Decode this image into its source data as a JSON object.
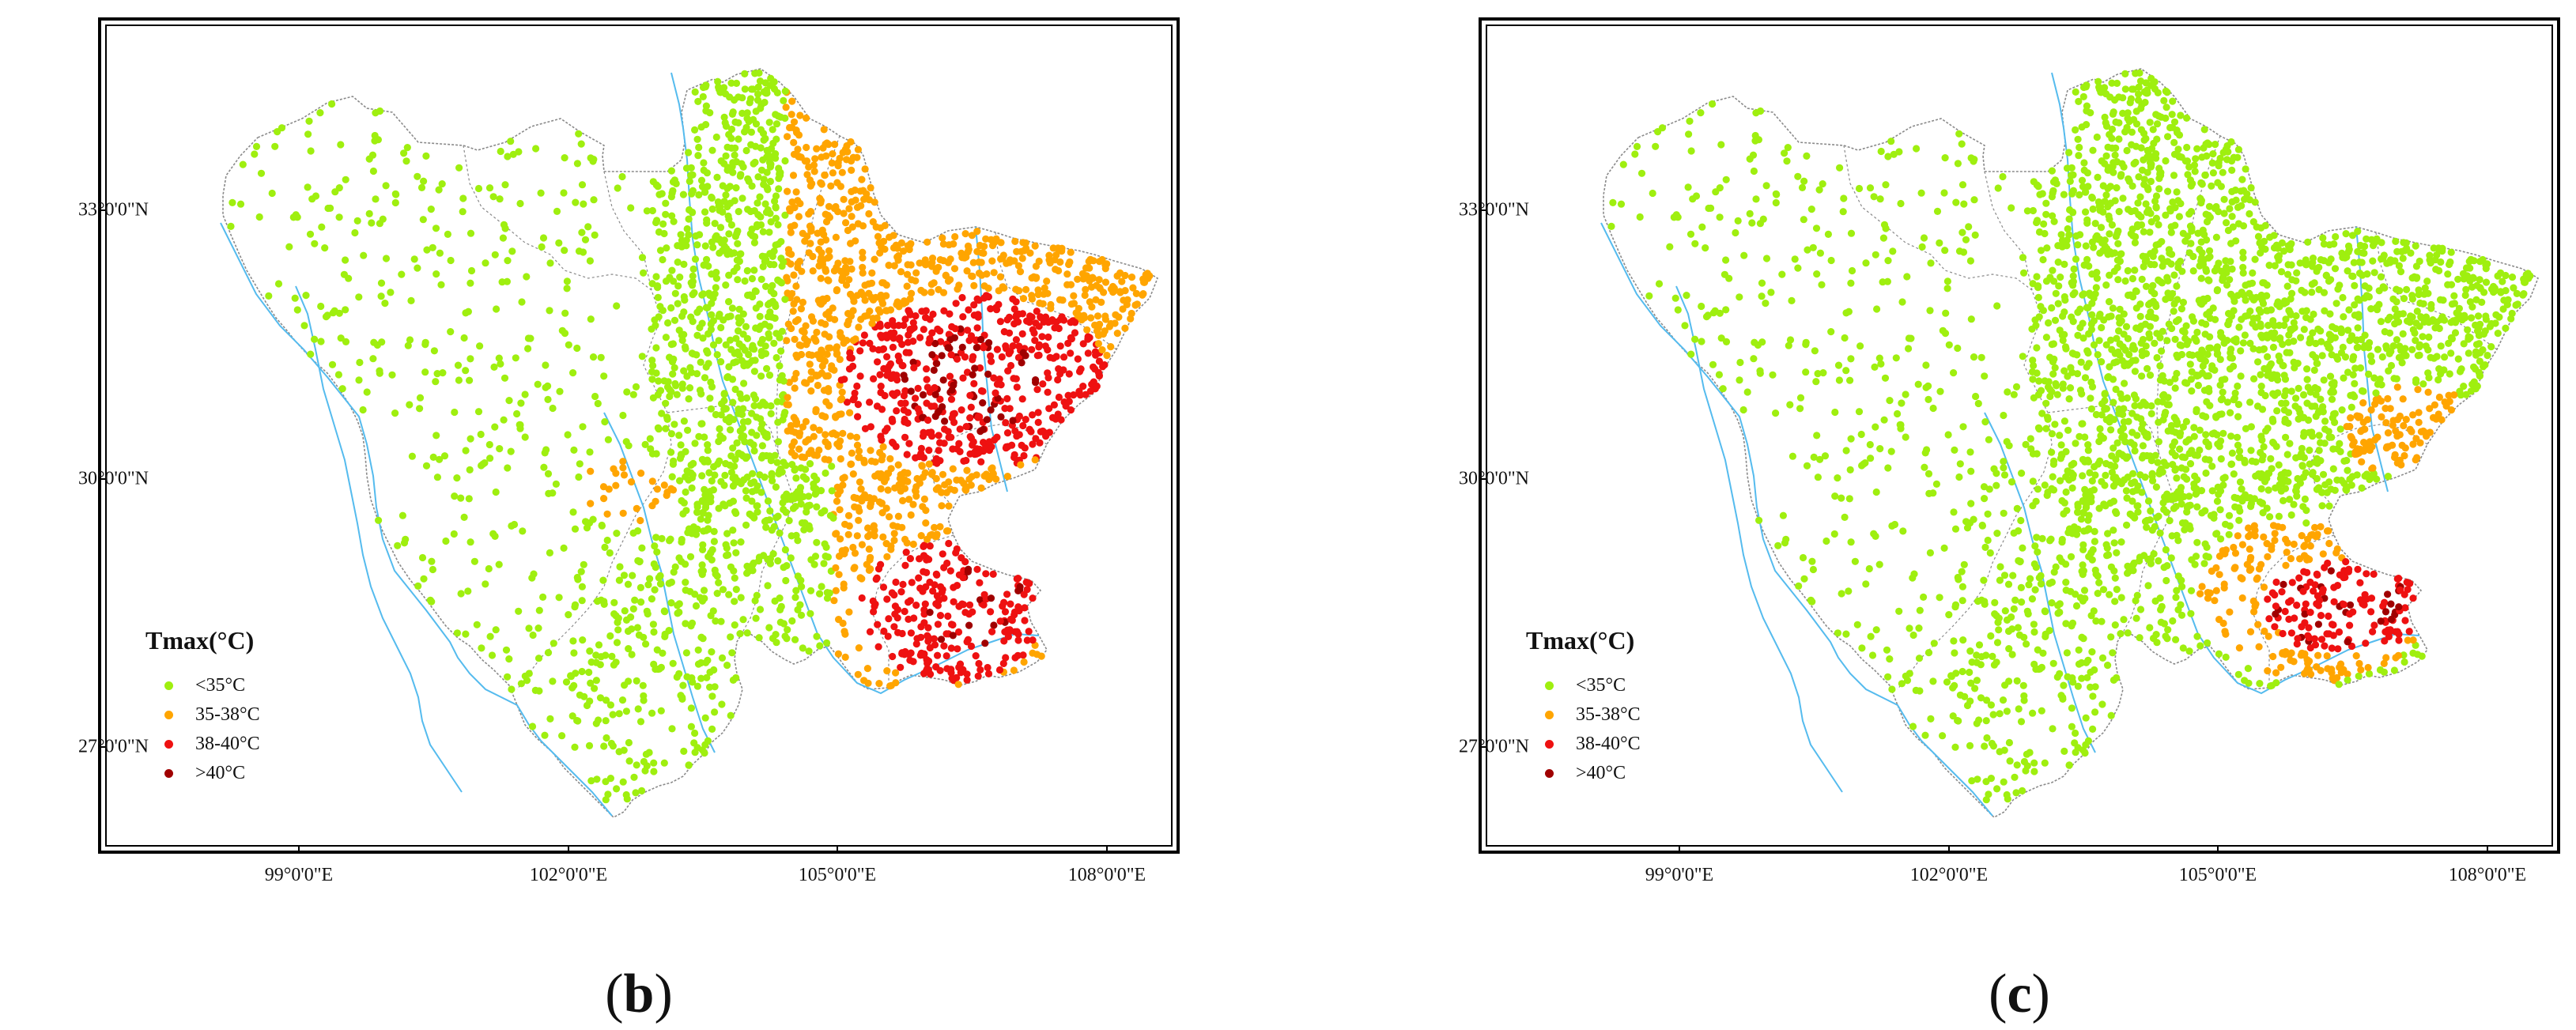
{
  "panels": [
    {
      "id": "b",
      "caption_open": "(",
      "caption_letter": "b",
      "caption_close": ")",
      "scenario": "wide"
    },
    {
      "id": "c",
      "caption_open": "(",
      "caption_letter": "c",
      "caption_close": ")",
      "scenario": "narrow"
    }
  ],
  "axes": {
    "lat_ticks": [
      "33°0'0\"N",
      "30°0'0\"N",
      "27°0'0\"N"
    ],
    "lat_values": [
      33,
      30,
      27
    ],
    "lon_ticks": [
      "99°0'0\"E",
      "102°0'0\"E",
      "105°0'0\"E",
      "108°0'0\"E"
    ],
    "lon_values": [
      99,
      102,
      105,
      108
    ],
    "lon_range": [
      96.6,
      108.9
    ],
    "lat_range": [
      25.9,
      34.5
    ]
  },
  "legend": {
    "title": "Tmax(°C)",
    "classes": [
      {
        "label": "<35°C",
        "color": "#9fef0f"
      },
      {
        "label": "35-38°C",
        "color": "#ffa500"
      },
      {
        "label": "38-40°C",
        "color": "#ee1111"
      },
      {
        "label": ">40°C",
        "color": "#a00000"
      }
    ]
  },
  "colors": {
    "boundary": "#8a8a8a",
    "river": "#55bbee",
    "frame": "#000000"
  }
}
